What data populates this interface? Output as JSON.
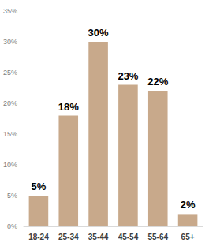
{
  "chart_data": {
    "type": "bar",
    "categories": [
      "18-24",
      "25-34",
      "35-44",
      "45-54",
      "55-64",
      "65+"
    ],
    "values": [
      5,
      18,
      30,
      23,
      22,
      2
    ],
    "value_labels": [
      "5%",
      "18%",
      "30%",
      "23%",
      "22%",
      "2%"
    ],
    "color": "#c8a98b",
    "ylim": [
      0,
      35
    ],
    "yticks": [
      {
        "value": 0,
        "label": "0%"
      },
      {
        "value": 5,
        "label": "5%"
      },
      {
        "value": 10,
        "label": "10%"
      },
      {
        "value": 15,
        "label": "15%"
      },
      {
        "value": 20,
        "label": "20%"
      },
      {
        "value": 25,
        "label": "25%"
      },
      {
        "value": 30,
        "label": "30%"
      },
      {
        "value": 35,
        "label": "35%"
      }
    ],
    "grid": false,
    "data_labels": true
  }
}
